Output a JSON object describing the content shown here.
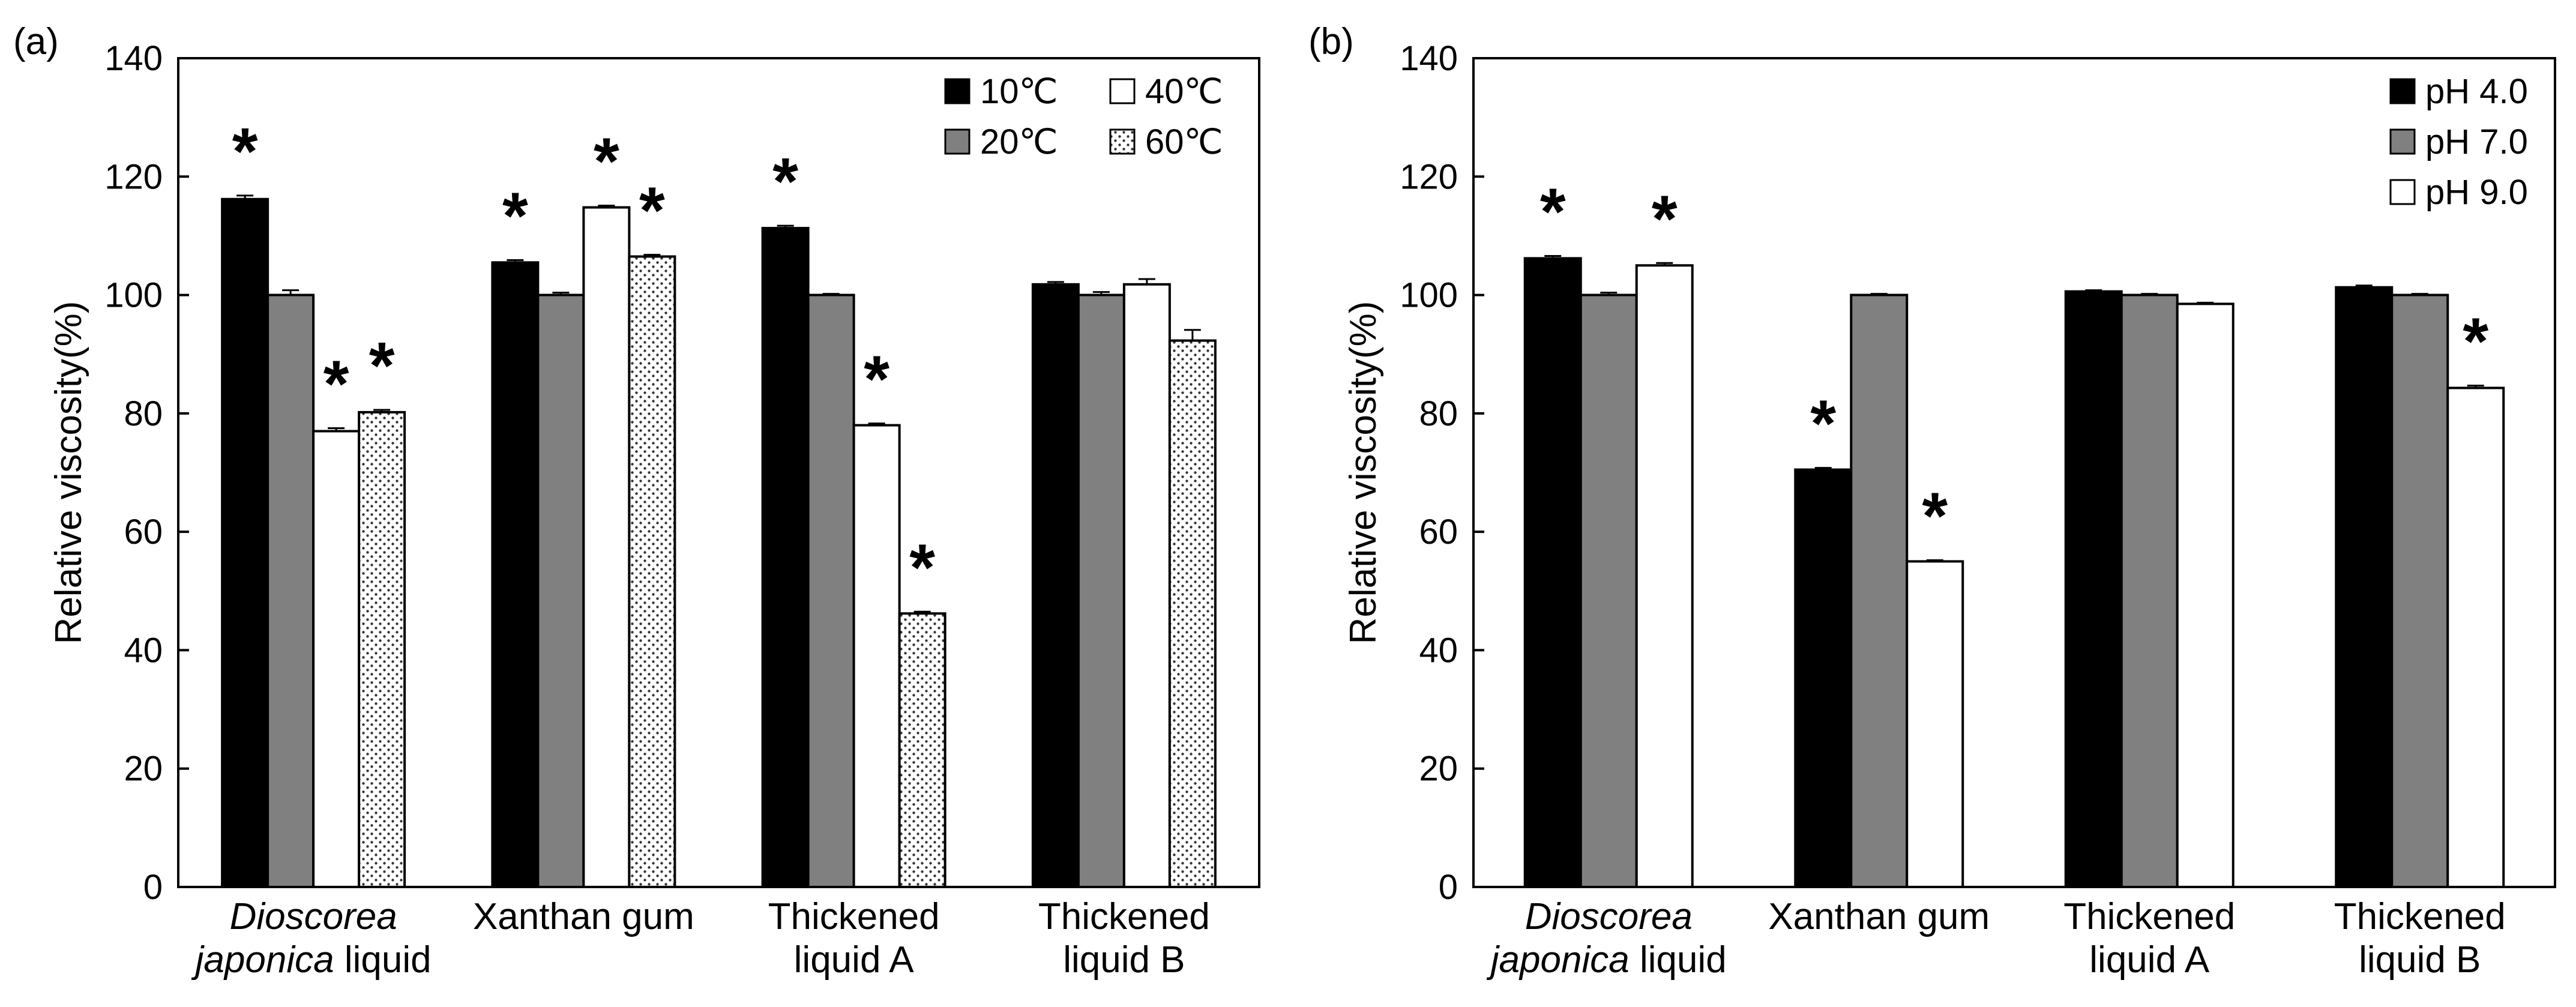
{
  "chart_data": [
    {
      "type": "bar",
      "panel_label": "(a)",
      "ylabel": "Relative viscosity(%)",
      "ylim": [
        0,
        140
      ],
      "yticks": [
        "0",
        "20",
        "40",
        "60",
        "80",
        "100",
        "120",
        "140"
      ],
      "categories": [
        {
          "line1": "Dioscorea",
          "line1_italic": true,
          "line2_italic": "japonica",
          "line2_rest": " liquid"
        },
        {
          "line1": "Xanthan gum",
          "line1_italic": false,
          "line2_italic": "",
          "line2_rest": ""
        },
        {
          "line1": "Thickened",
          "line1_italic": false,
          "line2_italic": "",
          "line2_rest": "liquid A"
        },
        {
          "line1": "Thickened",
          "line1_italic": false,
          "line2_italic": "",
          "line2_rest": "liquid B"
        }
      ],
      "series": [
        {
          "name": "10℃",
          "fill": "solid-black",
          "values": [
            116.2,
            105.5,
            111.3,
            101.8
          ],
          "errors": [
            0.6,
            0.4,
            0.4,
            0.4
          ],
          "significant": [
            true,
            true,
            true,
            false
          ]
        },
        {
          "name": "20℃",
          "fill": "solid-gray",
          "values": [
            100,
            100,
            100,
            100
          ],
          "errors": [
            0.8,
            0.4,
            0.2,
            0.5
          ],
          "significant": [
            false,
            false,
            false,
            false
          ]
        },
        {
          "name": "40℃",
          "fill": "white",
          "values": [
            77.0,
            114.8,
            78.0,
            101.8
          ],
          "errors": [
            0.5,
            0.3,
            0.3,
            0.9
          ],
          "significant": [
            true,
            true,
            true,
            false
          ]
        },
        {
          "name": "60℃",
          "fill": "dotted",
          "values": [
            80.2,
            106.5,
            46.2,
            92.3
          ],
          "errors": [
            0.4,
            0.3,
            0.3,
            1.8
          ],
          "significant": [
            true,
            true,
            true,
            false
          ]
        }
      ],
      "legend_columns": [
        [
          "10℃",
          "20℃"
        ],
        [
          "40℃",
          "60℃"
        ]
      ],
      "legend_position": "top-right",
      "significance_marker": "*"
    },
    {
      "type": "bar",
      "panel_label": "(b)",
      "ylabel": "Relative viscosity(%)",
      "ylim": [
        0,
        140
      ],
      "yticks": [
        "0",
        "20",
        "40",
        "60",
        "80",
        "100",
        "120",
        "140"
      ],
      "categories": [
        {
          "line1": "Dioscorea",
          "line1_italic": true,
          "line2_italic": "japonica",
          "line2_rest": " liquid"
        },
        {
          "line1": "Xanthan gum",
          "line1_italic": false,
          "line2_italic": "",
          "line2_rest": ""
        },
        {
          "line1": "Thickened",
          "line1_italic": false,
          "line2_italic": "",
          "line2_rest": "liquid A"
        },
        {
          "line1": "Thickened",
          "line1_italic": false,
          "line2_italic": "",
          "line2_rest": "liquid B"
        }
      ],
      "series": [
        {
          "name": "pH 4.0",
          "fill": "solid-black",
          "values": [
            106.2,
            70.5,
            100.6,
            101.3
          ],
          "errors": [
            0.4,
            0.3,
            0.2,
            0.3
          ],
          "significant": [
            true,
            true,
            false,
            false
          ]
        },
        {
          "name": "pH 7.0",
          "fill": "solid-gray",
          "values": [
            100,
            100,
            100,
            100
          ],
          "errors": [
            0.4,
            0.2,
            0.2,
            0.2
          ],
          "significant": [
            false,
            false,
            false,
            false
          ]
        },
        {
          "name": "pH 9.0",
          "fill": "white",
          "values": [
            105.0,
            55.0,
            98.5,
            84.3
          ],
          "errors": [
            0.4,
            0.2,
            0.2,
            0.4
          ],
          "significant": [
            true,
            true,
            false,
            true
          ]
        }
      ],
      "legend_columns": [
        [
          "pH 4.0",
          "pH 7.0",
          "pH 9.0"
        ]
      ],
      "legend_position": "top-right",
      "significance_marker": "*"
    }
  ]
}
